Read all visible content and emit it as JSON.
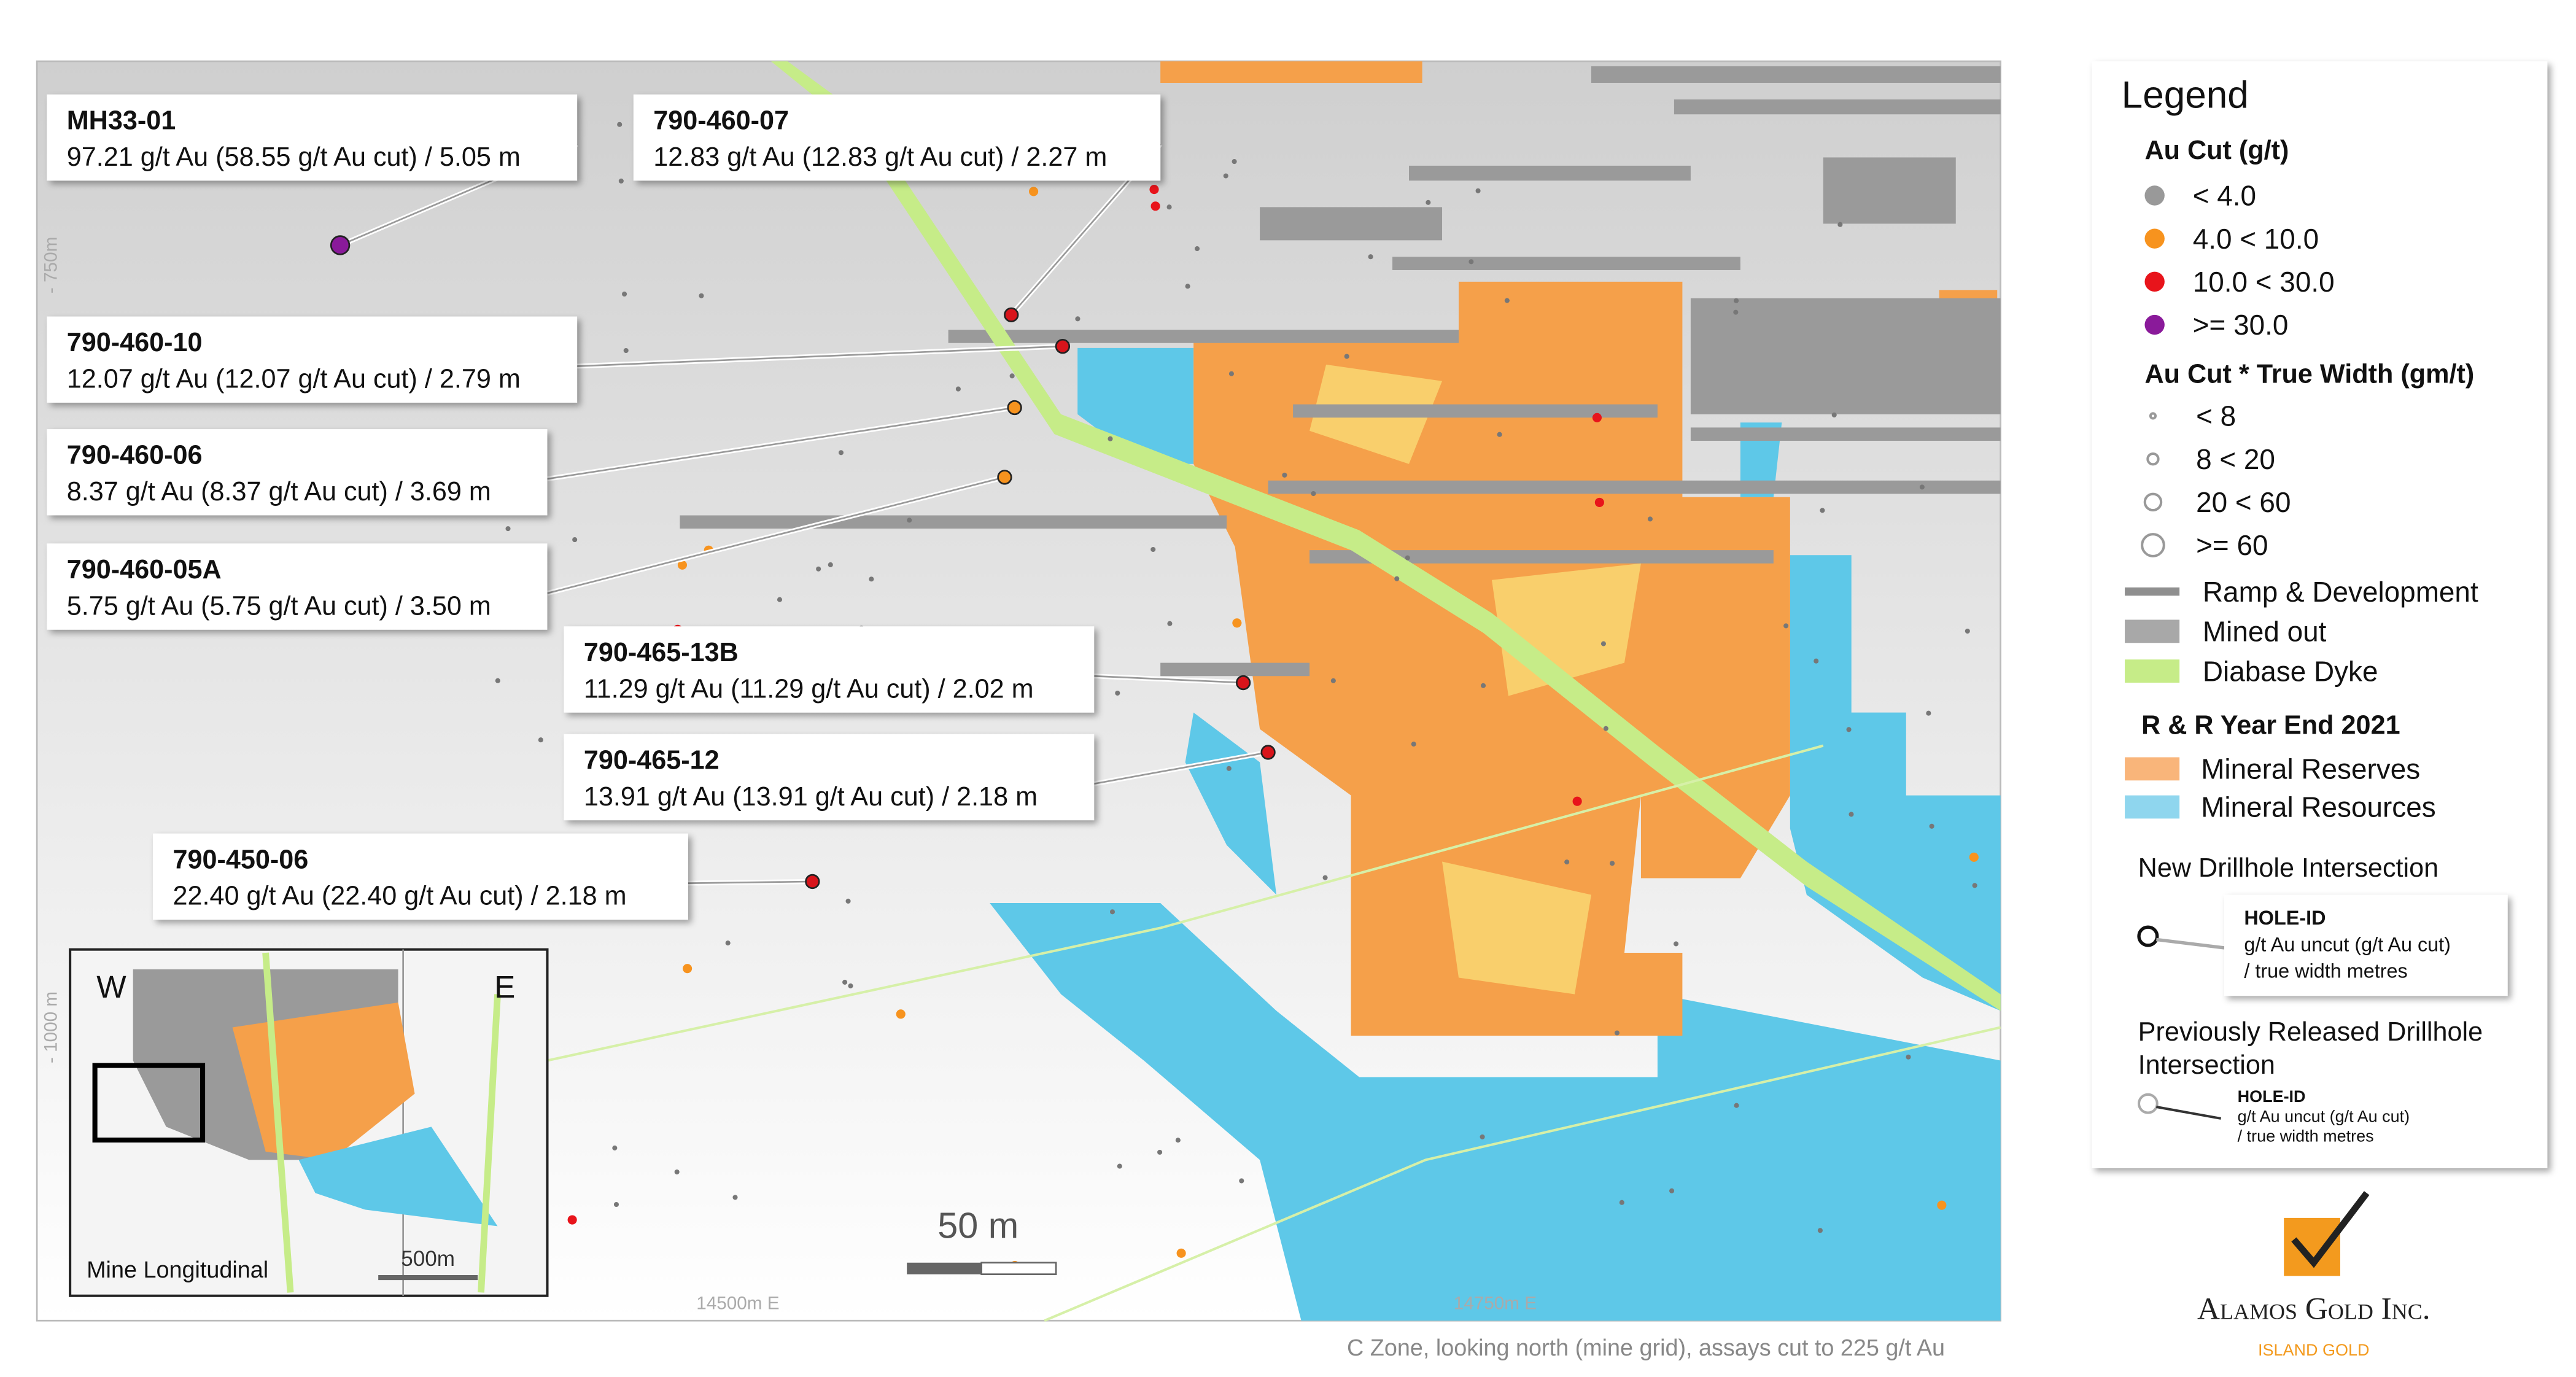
{
  "callouts": [
    {
      "hole_id": "MH33-01",
      "detail": "97.21 g/t Au (58.55 g/t Au cut) / 5.05 m"
    },
    {
      "hole_id": "790-460-07",
      "detail": "12.83 g/t Au (12.83 g/t Au cut) / 2.27 m"
    },
    {
      "hole_id": "790-460-10",
      "detail": "12.07 g/t Au (12.07 g/t Au cut) / 2.79 m"
    },
    {
      "hole_id": "790-460-06",
      "detail": "8.37 g/t Au (8.37 g/t Au cut) / 3.69 m"
    },
    {
      "hole_id": "790-460-05A",
      "detail": "5.75 g/t Au (5.75 g/t Au cut) / 3.50 m"
    },
    {
      "hole_id": "790-465-13B",
      "detail": "11.29 g/t Au (11.29 g/t Au cut) / 2.02 m"
    },
    {
      "hole_id": "790-465-12",
      "detail": "13.91 g/t Au (13.91 g/t Au cut) / 2.18 m"
    },
    {
      "hole_id": "790-450-06",
      "detail": "22.40 g/t Au (22.40 g/t Au cut) / 2.18 m"
    }
  ],
  "map_labels": {
    "elevation_750": "- 750m",
    "elevation_1000": "- 1000 m",
    "easting_14500": "14500m E",
    "easting_14750": "14750m E",
    "scale": "50 m"
  },
  "inset": {
    "west": "W",
    "east": "E",
    "scale": "500m",
    "title": "Mine Longitudinal"
  },
  "legend": {
    "title": "Legend",
    "au_cut": {
      "heading": "Au Cut (g/t)",
      "items": [
        "< 4.0",
        "4.0 < 10.0",
        "10.0 < 30.0",
        ">= 30.0"
      ]
    },
    "width": {
      "heading": "Au Cut * True Width (gm/t)",
      "items": [
        "< 8",
        "8 < 20",
        "20 < 60",
        ">= 60"
      ]
    },
    "features": [
      "Ramp & Development",
      "Mined out",
      "Diabase Dyke"
    ],
    "rr": {
      "heading": "R & R Year End 2021",
      "items": [
        "Mineral Reserves",
        "Mineral Resources"
      ]
    },
    "new_intersection": {
      "heading": "New Drillhole Intersection",
      "lines": [
        "HOLE-ID",
        "g/t Au uncut (g/t Au cut)",
        "/ true width metres"
      ]
    },
    "previous_intersection": {
      "heading_lines": [
        "Previously Released Drillhole",
        "Intersection"
      ],
      "lines": [
        "HOLE-ID",
        "g/t Au uncut (g/t Au cut)",
        "/ true width metres"
      ]
    }
  },
  "caption": "C Zone, looking north (mine grid), assays cut to 225 g/t Au",
  "logo": {
    "name": "Alamos Gold Inc.",
    "sub": "ISLAND GOLD"
  }
}
